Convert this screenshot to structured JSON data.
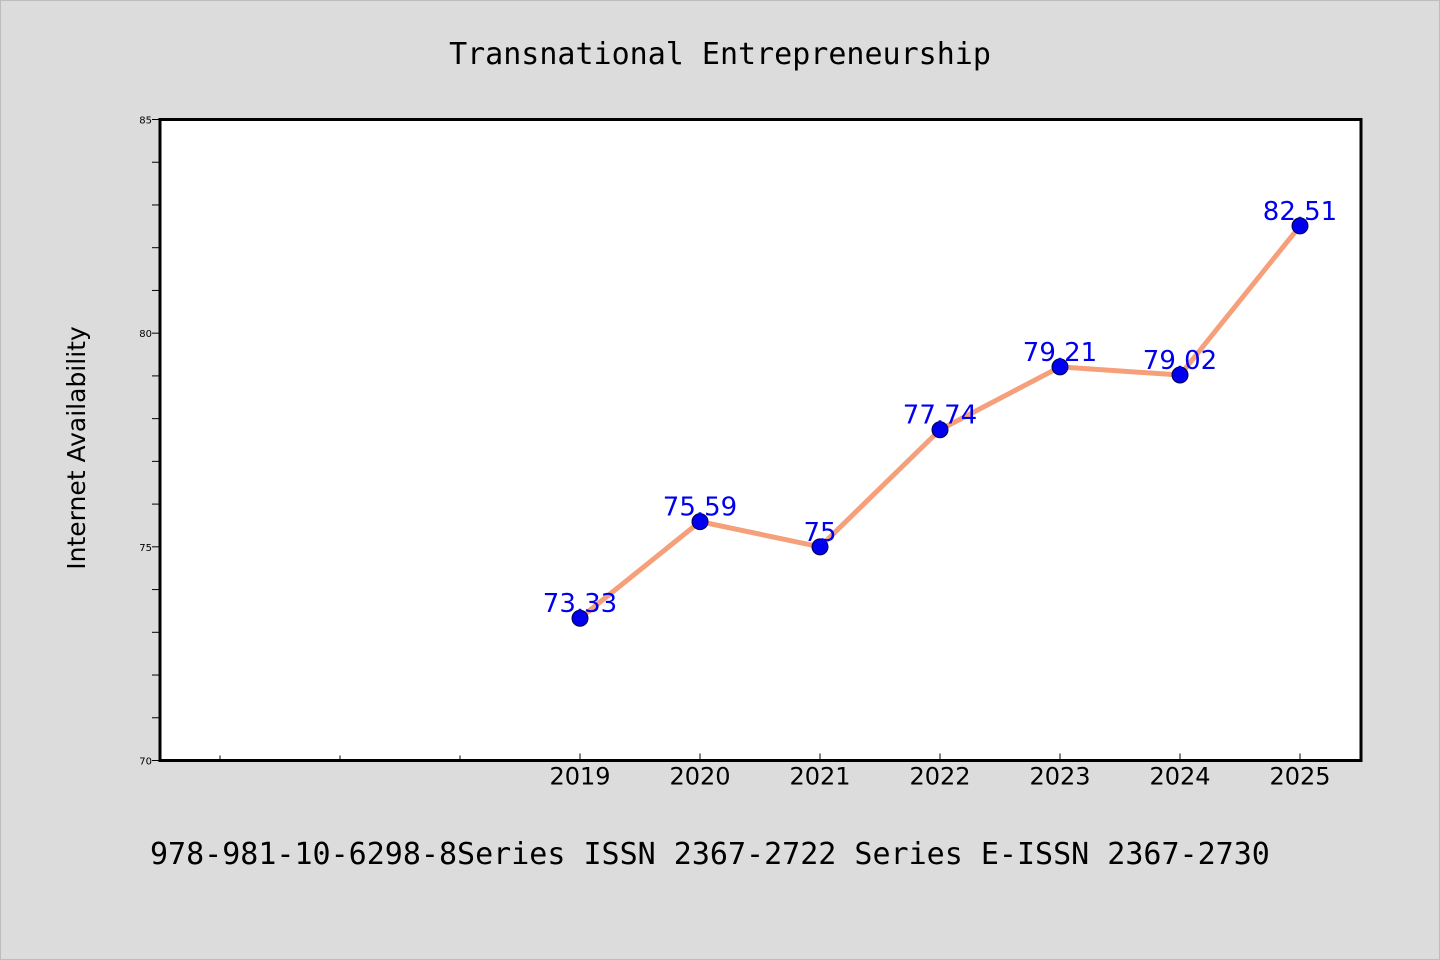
{
  "chart_data": {
    "type": "line",
    "title": "Transnational Entrepreneurship",
    "xlabel": "",
    "ylabel": "Internet Availability",
    "x": [
      "2019",
      "2020",
      "2021",
      "2022",
      "2023",
      "2024",
      "2025"
    ],
    "series": [
      {
        "values": [
          73.33,
          75.59,
          75,
          77.74,
          79.21,
          79.02,
          82.51
        ],
        "labels": [
          "73.33",
          "75.59",
          "75",
          "77.74",
          "79.21",
          "79.02",
          "82.51"
        ],
        "line_color": "#f5a07a",
        "marker_color": "#0000ee",
        "label_color": "#0000ee"
      }
    ],
    "y_ticks": [
      "70",
      "75",
      "80",
      "85"
    ],
    "ylim": [
      70,
      85
    ],
    "x_slots_before_first_category": 3,
    "grid": false,
    "legend": "none"
  },
  "footer": {
    "text": "978-981-10-6298-8Series ISSN 2367-2722 Series E-ISSN 2367-2730"
  },
  "colors": {
    "background": "#dcdcdc",
    "plot_background": "#ffffff",
    "axis": "#000000"
  }
}
